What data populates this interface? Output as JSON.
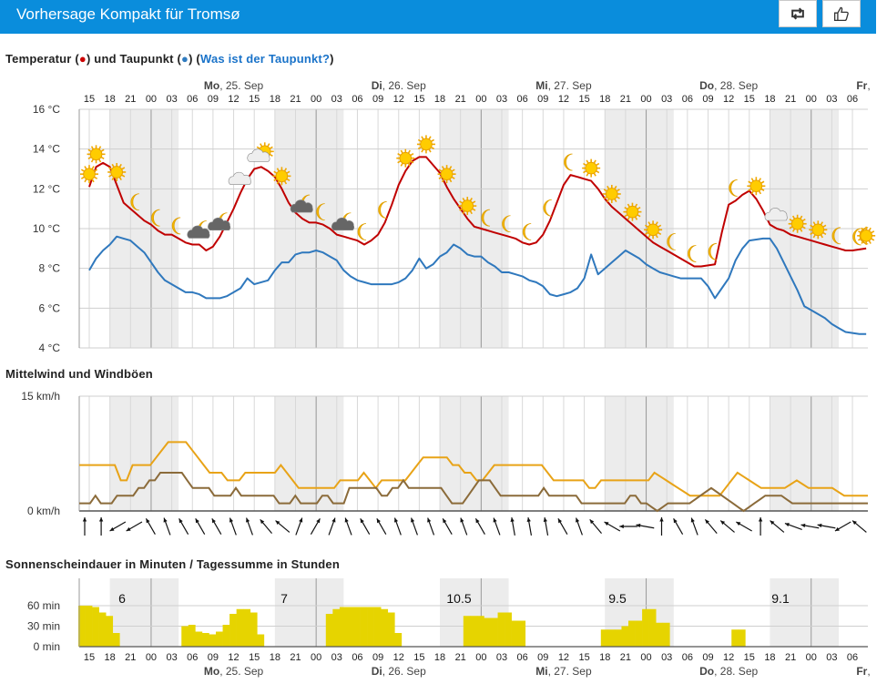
{
  "header": {
    "title": "Vorhersage Kompakt für Tromsø",
    "share_icon": "retweet-icon",
    "like_icon": "thumbs-up-icon"
  },
  "temperature_section": {
    "title_part1": "Temperatur (",
    "red_dot": "●",
    "title_part2": ") und Taupunkt (",
    "blue_dot": "●",
    "title_part3": ") (",
    "link": "Was ist der Taupunkt?",
    "title_part4": ")"
  },
  "wind_section": {
    "title": "Mittelwind und Windböen"
  },
  "sun_section": {
    "title": "Sonnenscheindauer in Minuten / Tagessumme in Stunden"
  },
  "colors": {
    "temperature": "#c00000",
    "dewpoint": "#2f78bd",
    "wind_mean": "#8b6b3a",
    "wind_gusts": "#e8a317",
    "sunshine": "#e6d400",
    "night_band": "#ececec"
  },
  "chart_data": [
    {
      "type": "line",
      "name": "temperature-dewpoint",
      "days": [
        {
          "wd": "Mo",
          "date": ", 25. Sep"
        },
        {
          "wd": "Di",
          "date": ", 26. Sep"
        },
        {
          "wd": "Mi",
          "date": ", 27. Sep"
        },
        {
          "wd": "Do",
          "date": ", 28. Sep"
        },
        {
          "wd": "Fr",
          "date": ","
        }
      ],
      "hour_labels": [
        "15",
        "18",
        "21",
        "00",
        "03",
        "06",
        "09",
        "12",
        "15",
        "18",
        "21",
        "00",
        "03",
        "06",
        "09",
        "12",
        "15",
        "18",
        "21",
        "00",
        "03",
        "06",
        "09",
        "12",
        "15",
        "18",
        "21",
        "00",
        "03",
        "06",
        "09",
        "12",
        "15",
        "18",
        "21",
        "00",
        "03",
        "06"
      ],
      "y_ticks": [
        "16 °C",
        "14 °C",
        "12 °C",
        "10 °C",
        "8 °C",
        "6 °C",
        "4 °C"
      ],
      "ylim": [
        4,
        16
      ],
      "series": [
        {
          "name": "Temperatur",
          "values": [
            12.1,
            13.1,
            13.3,
            13.1,
            12.2,
            11.3,
            11.0,
            10.7,
            10.4,
            10.2,
            9.9,
            9.7,
            9.7,
            9.5,
            9.3,
            9.2,
            9.2,
            8.9,
            9.1,
            9.6,
            10.3,
            11.0,
            11.8,
            12.5,
            13.0,
            13.1,
            12.9,
            12.6,
            12.0,
            11.3,
            10.8,
            10.5,
            10.3,
            10.3,
            10.2,
            10.0,
            9.7,
            9.6,
            9.5,
            9.4,
            9.2,
            9.4,
            9.7,
            10.3,
            11.2,
            12.2,
            12.9,
            13.4,
            13.6,
            13.6,
            13.2,
            12.8,
            12.1,
            11.5,
            11.0,
            10.5,
            10.1,
            10.0,
            9.9,
            9.8,
            9.7,
            9.6,
            9.5,
            9.3,
            9.2,
            9.3,
            9.7,
            10.4,
            11.3,
            12.2,
            12.7,
            12.6,
            12.5,
            12.4,
            12.0,
            11.5,
            11.1,
            10.8,
            10.5,
            10.2,
            9.9,
            9.6,
            9.3,
            9.1,
            8.9,
            8.7,
            8.5,
            8.3,
            8.1,
            8.1,
            8.15,
            8.2,
            9.8,
            11.2,
            11.4,
            11.7,
            11.9,
            11.5,
            10.9,
            10.2,
            10.0,
            9.9,
            9.7,
            9.6,
            9.5,
            9.4,
            9.3,
            9.2,
            9.1,
            9.0,
            8.9,
            8.9,
            8.95,
            9.0
          ]
        },
        {
          "name": "Taupunkt",
          "values": [
            7.9,
            8.5,
            8.9,
            9.2,
            9.6,
            9.5,
            9.4,
            9.1,
            8.8,
            8.3,
            7.8,
            7.4,
            7.2,
            7.0,
            6.8,
            6.8,
            6.7,
            6.5,
            6.5,
            6.5,
            6.6,
            6.8,
            7.0,
            7.5,
            7.2,
            7.3,
            7.4,
            7.9,
            8.3,
            8.3,
            8.7,
            8.8,
            8.8,
            8.9,
            8.8,
            8.6,
            8.4,
            7.9,
            7.6,
            7.4,
            7.3,
            7.2,
            7.2,
            7.2,
            7.2,
            7.3,
            7.5,
            7.9,
            8.5,
            8.0,
            8.2,
            8.6,
            8.8,
            9.2,
            9.0,
            8.7,
            8.6,
            8.6,
            8.3,
            8.1,
            7.8,
            7.8,
            7.7,
            7.6,
            7.4,
            7.3,
            7.1,
            6.7,
            6.6,
            6.7,
            6.8,
            7.0,
            7.5,
            8.7,
            7.7,
            8.0,
            8.3,
            8.6,
            8.9,
            8.7,
            8.5,
            8.2,
            8.0,
            7.8,
            7.7,
            7.6,
            7.5,
            7.5,
            7.5,
            7.5,
            7.1,
            6.5,
            7.0,
            7.5,
            8.4,
            9.0,
            9.4,
            9.45,
            9.5,
            9.5,
            9.0,
            8.3,
            7.6,
            6.9,
            6.1,
            5.9,
            5.7,
            5.5,
            5.2,
            5.0,
            4.8,
            4.75,
            4.7,
            4.7
          ]
        }
      ],
      "weather_icons": [
        "sun",
        "sun",
        "sun",
        "moon",
        "moon",
        "moon",
        "cloud-night",
        "cloud-night",
        "cloud-day",
        "sun-cloud",
        "sun",
        "cloud-night",
        "moon",
        "cloud-night",
        "moon",
        "moon",
        "sun",
        "sun",
        "sun",
        "sun",
        "moon",
        "moon",
        "moon",
        "moon",
        "moon",
        "sun",
        "sun",
        "sun",
        "sun",
        "moon",
        "moon",
        "moon",
        "moon",
        "sun",
        "cloud-day",
        "sun",
        "sun",
        "moon",
        "moon",
        "moon",
        "moon",
        "sun"
      ]
    },
    {
      "type": "line",
      "name": "wind",
      "y_ticks": [
        "15 km/h",
        "0 km/h"
      ],
      "ylim": [
        0,
        15
      ],
      "series": [
        {
          "name": "Windböen",
          "values": [
            6,
            6,
            6,
            6,
            6,
            6,
            6,
            4,
            4,
            6,
            6,
            6,
            6,
            7,
            8,
            9,
            9,
            9,
            9,
            8,
            7,
            6,
            5,
            5,
            5,
            4,
            4,
            4,
            5,
            5,
            5,
            5,
            5,
            5,
            6,
            5,
            4,
            3,
            3,
            3,
            3,
            3,
            3,
            3,
            4,
            4,
            4,
            4,
            5,
            4,
            3,
            4,
            4,
            4,
            4,
            4,
            5,
            6,
            7,
            7,
            7,
            7,
            7,
            6,
            6,
            5,
            5,
            4,
            4,
            5,
            6,
            6,
            6,
            6,
            6,
            6,
            6,
            6,
            6,
            5,
            4,
            4,
            4,
            4,
            4,
            4,
            3,
            3,
            4,
            4,
            4,
            4,
            4,
            4,
            4,
            4,
            4,
            5,
            4.5,
            4,
            3.5,
            3,
            2.5,
            2,
            2,
            2,
            2,
            2,
            2,
            3,
            4,
            5,
            4.5,
            4,
            3.5,
            3,
            3,
            3,
            3,
            3,
            3.5,
            4,
            3.5,
            3,
            3,
            3,
            3,
            3,
            2.5,
            2,
            2,
            2,
            2,
            2
          ]
        },
        {
          "name": "Mittelwind",
          "values": [
            1,
            1,
            1,
            2,
            1,
            1,
            1,
            2,
            2,
            2,
            2,
            3,
            3,
            4,
            4,
            5,
            5,
            5,
            5,
            5,
            4,
            3,
            3,
            3,
            3,
            2,
            2,
            2,
            2,
            3,
            2,
            2,
            2,
            2,
            2,
            2,
            2,
            1,
            1,
            1,
            2,
            1,
            1,
            1,
            1,
            2,
            2,
            1,
            1,
            1,
            3,
            3,
            3,
            3,
            3,
            3,
            2,
            2,
            3,
            3,
            4,
            3,
            3,
            3,
            3,
            3,
            3,
            3,
            2,
            1,
            1,
            1,
            2,
            3,
            4,
            4,
            4,
            3,
            2,
            2,
            2,
            2,
            2,
            2,
            2,
            2,
            3,
            2,
            2,
            2,
            2,
            2,
            2,
            1,
            1,
            1,
            1,
            1,
            1,
            1,
            1,
            1,
            2,
            2,
            1,
            1,
            0.5,
            0,
            0.5,
            1,
            1,
            1,
            1,
            1,
            1.5,
            2,
            2.5,
            3,
            2.5,
            2,
            1.5,
            1,
            0.5,
            0,
            0.5,
            1,
            1.5,
            2,
            2,
            2,
            2,
            1.5,
            1,
            1,
            1,
            1,
            1,
            1,
            1,
            1,
            1,
            1,
            1,
            1,
            1,
            1,
            1
          ]
        }
      ],
      "wind_direction_deg": [
        0,
        0,
        -120,
        -120,
        -30,
        -20,
        -30,
        -30,
        -30,
        -20,
        -20,
        -40,
        -50,
        20,
        30,
        20,
        -20,
        -30,
        -30,
        -20,
        -20,
        -20,
        -30,
        -20,
        -30,
        -20,
        -10,
        -10,
        -10,
        -30,
        -20,
        -40,
        -60,
        -90,
        -80,
        0,
        -30,
        -20,
        -40,
        -50,
        -60,
        0,
        -50,
        -70,
        -80,
        -80,
        -120,
        -50
      ]
    },
    {
      "type": "bar",
      "name": "sunshine",
      "y_ticks": [
        "60 min",
        "30 min",
        "0 min"
      ],
      "ylim": [
        0,
        60
      ],
      "values": [
        60,
        60,
        58,
        50,
        45,
        20,
        0,
        0,
        0,
        0,
        0,
        0,
        0,
        0,
        0,
        30,
        32,
        22,
        20,
        18,
        22,
        32,
        48,
        55,
        55,
        50,
        18,
        0,
        0,
        0,
        0,
        0,
        0,
        0,
        0,
        0,
        48,
        55,
        58,
        58,
        58,
        58,
        58,
        58,
        55,
        50,
        20,
        0,
        0,
        0,
        0,
        0,
        0,
        0,
        0,
        0,
        45,
        45,
        45,
        42,
        42,
        50,
        50,
        38,
        38,
        0,
        0,
        0,
        0,
        0,
        0,
        0,
        0,
        0,
        0,
        0,
        25,
        25,
        25,
        30,
        38,
        38,
        55,
        55,
        35,
        35,
        0,
        0,
        0,
        0,
        0,
        0,
        0,
        0,
        0,
        25,
        25
      ],
      "daily_sums": [
        "6",
        "7",
        "10.5",
        "9.5",
        "9.1"
      ],
      "hour_labels": [
        "15",
        "18",
        "21",
        "00",
        "03",
        "06",
        "09",
        "12",
        "15",
        "18",
        "21",
        "00",
        "03",
        "06",
        "09",
        "12",
        "15",
        "18",
        "21",
        "00",
        "03",
        "06",
        "09",
        "12",
        "15",
        "18",
        "21",
        "00",
        "03",
        "06",
        "09",
        "12",
        "15",
        "18",
        "21",
        "00",
        "03",
        "06"
      ],
      "days": [
        {
          "wd": "Mo",
          "date": ", 25. Sep"
        },
        {
          "wd": "Di",
          "date": ", 26. Sep"
        },
        {
          "wd": "Mi",
          "date": ", 27. Sep"
        },
        {
          "wd": "Do",
          "date": ", 28. Sep"
        },
        {
          "wd": "Fr",
          "date": ","
        }
      ]
    }
  ]
}
